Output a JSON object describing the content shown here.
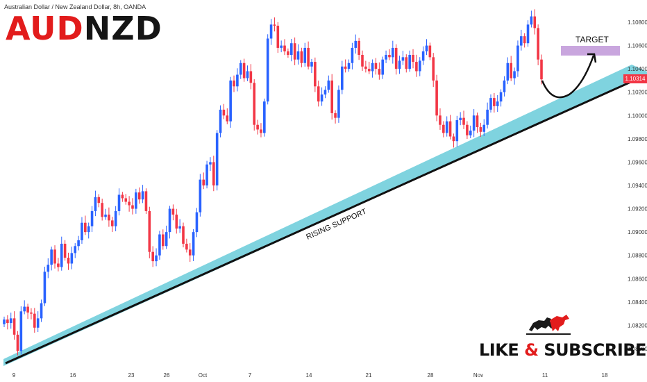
{
  "header": {
    "symbol_line": "Australian Dollar / New Zealand Dollar, 8h, OANDA",
    "title_part1": "AUD",
    "title_part2": "NZD"
  },
  "price_tag": "1.10314",
  "colors": {
    "up": "#2962ff",
    "down": "#f23645",
    "support_band": "#7fd3df",
    "target_zone": "#c9a6de",
    "title_red": "#e21c1c"
  },
  "annotations": {
    "support_label": "RISING SUPPORT",
    "target_label": "TARGET"
  },
  "branding": {
    "subscribe_part1": "LIKE ",
    "subscribe_amp": "&",
    "subscribe_part2": " SUBSCRIBE",
    "logo_icon": "bull-bear-icon"
  },
  "chart_data": {
    "type": "candlestick",
    "title": "AUDNZD",
    "x_ticks": [
      "9",
      "16",
      "23",
      "26",
      "Oct",
      "7",
      "14",
      "21",
      "28",
      "Nov",
      "11",
      "18"
    ],
    "y_ticks": [
      "1.10800",
      "1.10600",
      "1.10400",
      "1.10200",
      "1.10000",
      "1.09800",
      "1.09600",
      "1.09400",
      "1.09200",
      "1.09000",
      "1.08800",
      "1.08600",
      "1.08400",
      "1.08200",
      "1.08000"
    ],
    "ylim": [
      1.0788,
      1.1092
    ],
    "last_price": 1.10314,
    "candle_closes": [
      1.0825,
      1.0822,
      1.0826,
      1.0812,
      1.0798,
      1.0832,
      1.0836,
      1.0831,
      1.083,
      1.0818,
      1.0826,
      1.0839,
      1.0866,
      1.0872,
      1.0885,
      1.0873,
      1.087,
      1.089,
      1.0878,
      1.0873,
      1.0882,
      1.0888,
      1.0893,
      1.0908,
      1.09,
      1.0905,
      1.0918,
      1.093,
      1.0925,
      1.0913,
      1.0915,
      1.091,
      1.0905,
      1.0918,
      1.0932,
      1.0929,
      1.0926,
      1.0923,
      1.092,
      1.0934,
      1.0928,
      1.0935,
      1.0918,
      1.0883,
      1.0875,
      1.088,
      1.0898,
      1.0888,
      1.09,
      1.092,
      1.0915,
      1.0903,
      1.0905,
      1.089,
      1.0885,
      1.088,
      1.09,
      1.0917,
      1.0945,
      1.094,
      1.0958,
      1.096,
      1.094,
      1.0985,
      1.1005,
      1.1,
      1.0995,
      1.103,
      1.1025,
      1.1035,
      1.1045,
      1.1032,
      1.1038,
      1.1028,
      1.0992,
      1.0988,
      1.0985,
      1.1012,
      1.1066,
      1.1078,
      1.1077,
      1.1058,
      1.106,
      1.1055,
      1.1052,
      1.1062,
      1.1048,
      1.1055,
      1.1045,
      1.1058,
      1.1042,
      1.1046,
      1.1025,
      1.1012,
      1.1018,
      1.1022,
      1.103,
      1.1002,
      1.0998,
      1.1022,
      1.1042,
      1.104,
      1.1045,
      1.1058,
      1.1064,
      1.1052,
      1.1042,
      1.104,
      1.1038,
      1.1045,
      1.104,
      1.1035,
      1.1048,
      1.1052,
      1.105,
      1.1058,
      1.104,
      1.1047,
      1.105,
      1.104,
      1.1052,
      1.1046,
      1.1038,
      1.1047,
      1.1055,
      1.106,
      1.105,
      1.103,
      1.1,
      1.0992,
      1.0985,
      1.0995,
      1.0982,
      1.0978,
      1.0996,
      1.0998,
      1.0992,
      1.0983,
      1.0987,
      1.1,
      1.099,
      1.0986,
      1.0992,
      1.1005,
      1.1015,
      1.1008,
      1.1012,
      1.102,
      1.103,
      1.1045,
      1.1032,
      1.1038,
      1.106,
      1.1068,
      1.1062,
      1.1078,
      1.1085,
      1.1075,
      1.1048,
      1.1031
    ]
  }
}
